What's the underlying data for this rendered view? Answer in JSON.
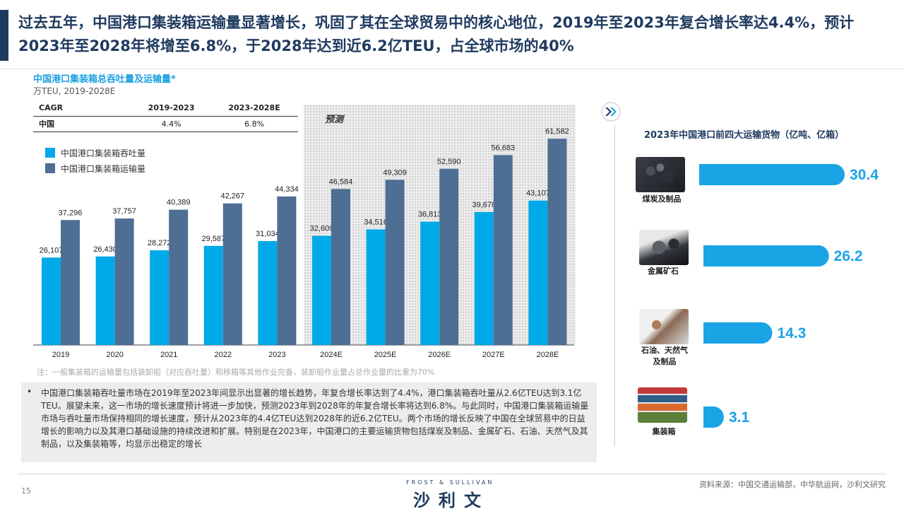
{
  "headline": "过去五年，中国港口集装箱运输量显著增长，巩固了其在全球贸易中的核心地位，2019年至2023年复合增长率达4.4%，预计2023年至2028年将增至6.8%，于2028年达到近6.2亿TEU，占全球市场的40%",
  "chart_left": {
    "title": "中国港口集装箱总吞吐量及运输量*",
    "unit": "万TEU, 2019-2028E",
    "forecast_label": "预测",
    "cagr_table": {
      "headers": [
        "CAGR",
        "2019-2023",
        "2023-2028E"
      ],
      "rows": [
        [
          "中国",
          "4.4%",
          "6.8%"
        ]
      ]
    },
    "note": "注：一般集装箱的运输量包括装卸船（对应吞吐量）和移箱等其他作业完备，装卸船作业量占总作业量的比重为70%"
  },
  "chart_data": [
    {
      "type": "bar",
      "title": "中国港口集装箱总吞吐量及运输量*",
      "categories": [
        "2019",
        "2020",
        "2021",
        "2022",
        "2023",
        "2024E",
        "2025E",
        "2026E",
        "2027E",
        "2028E"
      ],
      "series": [
        {
          "name": "中国港口集装箱吞吐量",
          "values": [
            26107,
            26430,
            28272,
            29587,
            31034,
            32609,
            34516,
            36813,
            39678,
            43107
          ],
          "labels": [
            "26,107",
            "26,430",
            "28,272",
            "29,587",
            "31,034",
            "32,609",
            "34,516",
            "36,813",
            "39,678",
            "43,107"
          ]
        },
        {
          "name": "中国港口集装箱运输量",
          "values": [
            37296,
            37757,
            40389,
            42267,
            44334,
            46584,
            49309,
            52590,
            56683,
            61582
          ],
          "labels": [
            "37,296",
            "37,757",
            "40,389",
            "42,267",
            "44,334",
            "46,584",
            "49,309",
            "52,590",
            "56,683",
            "61,582"
          ]
        }
      ],
      "forecast_from": "2024E",
      "ylim": [
        0,
        65000
      ],
      "legend_position": "top-left"
    },
    {
      "type": "bar",
      "title": "2023年中国港口前四大运输货物（亿吨、亿箱）",
      "categories": [
        "煤炭及制品",
        "金属矿石",
        "石油、天然气及制品",
        "集装箱"
      ],
      "values": [
        30.4,
        26.2,
        14.3,
        3.1
      ],
      "labels": [
        "30.4",
        "26.2",
        "14.3",
        "3.1"
      ],
      "orientation": "horizontal"
    }
  ],
  "colors": {
    "throughput": "#00a9e8",
    "transport": "#4e6e94",
    "navy": "#1f3a5f",
    "right_bar": "#1aa4e6"
  },
  "chart_right": {
    "title": "2023年中国港口前四大运输货物（亿吨、亿箱）",
    "icon": "double-chevron-icon",
    "items": [
      {
        "label": "煤炭及制品",
        "value": "30.4"
      },
      {
        "label": "金属矿石",
        "value": "26.2"
      },
      {
        "label": "石油、天然气\n及制品",
        "value": "14.3"
      },
      {
        "label": "集装箱",
        "value": "3.1"
      }
    ]
  },
  "summary": "中国港口集装箱吞吐量市场在2019年至2023年间显示出显著的增长趋势，年复合增长率达到了4.4%，港口集装箱吞吐量从2.6亿TEU达到3.1亿TEU。展望未来，这一市场的增长速度预计将进一步加快，预测2023年到2028年的年复合增长率将达到6.8%。与此同时，中国港口集装箱运输量市场与吞吐量市场保持相同的增长速度，预计从2023年的4.4亿TEU达到2028年的近6.2亿TEU。两个市场的增长反映了中国在全球贸易中的日益增长的影响力以及其港口基础设施的持续改进和扩展。特别是在2023年，中国港口的主要运输货物包括煤炭及制品、金属矿石、石油、天然气及其制品，以及集装箱等，均显示出稳定的增长",
  "footer": {
    "page": "15",
    "logo_small": "FROST & SULLIVAN",
    "logo_big": "沙利文",
    "source": "资料来源：中国交通运输部，中华航运网，沙利文研究"
  }
}
